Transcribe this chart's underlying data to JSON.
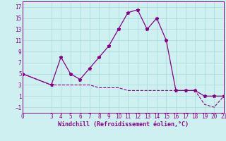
{
  "xlabel": "Windchill (Refroidissement éolien,°C)",
  "background_color": "#cff0f0",
  "grid_color": "#aadddd",
  "line_color": "#880088",
  "xlim": [
    0,
    21
  ],
  "ylim": [
    -2,
    18
  ],
  "xticks": [
    0,
    3,
    4,
    5,
    6,
    7,
    8,
    9,
    10,
    11,
    12,
    13,
    14,
    15,
    16,
    17,
    18,
    19,
    20,
    21
  ],
  "yticks": [
    -1,
    1,
    3,
    5,
    7,
    9,
    11,
    13,
    15,
    17
  ],
  "series1_x": [
    0,
    3,
    4,
    5,
    6,
    7,
    8,
    9,
    10,
    11,
    12,
    13,
    14,
    15,
    16,
    17,
    18,
    19,
    20,
    21
  ],
  "series1_y": [
    5,
    3,
    8,
    5,
    4,
    6,
    8,
    10,
    13,
    16,
    16.5,
    13,
    15,
    11,
    2,
    2,
    2,
    1,
    1,
    1
  ],
  "series2_x": [
    0,
    3,
    4,
    5,
    6,
    7,
    8,
    9,
    10,
    11,
    12,
    13,
    14,
    15,
    16,
    17,
    18,
    19,
    20,
    21
  ],
  "series2_y": [
    5,
    3,
    3,
    3,
    3,
    3,
    2.5,
    2.5,
    2.5,
    2,
    2,
    2,
    2,
    2,
    2,
    2,
    2,
    -0.5,
    -1,
    1
  ],
  "tick_fontsize": 5.5,
  "xlabel_fontsize": 6.0
}
